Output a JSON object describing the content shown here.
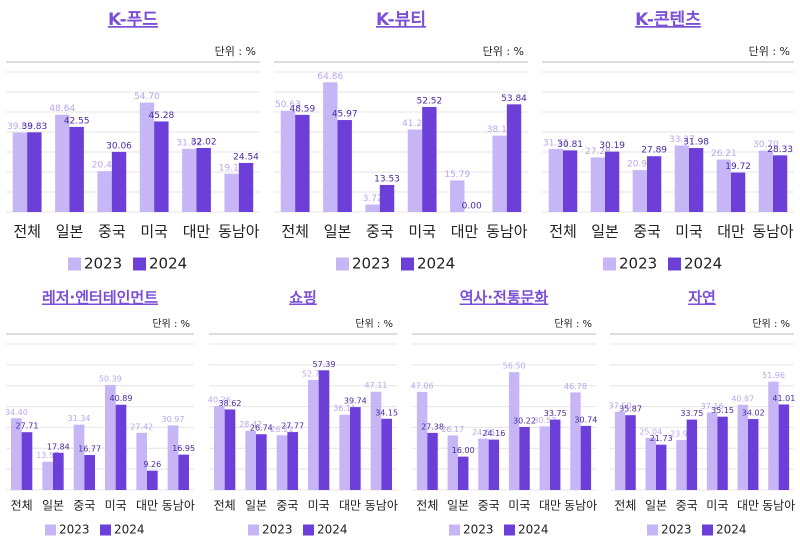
{
  "chart_data": [
    {
      "type": "bar",
      "title": "K-푸드",
      "unit": "단위 : %",
      "categories": [
        "전체",
        "일본",
        "중국",
        "미국",
        "대만",
        "동남아"
      ],
      "series": [
        {
          "name": "2023",
          "color": "#c6b6f6",
          "values": [
            39.68,
            48.64,
            20.42,
            54.7,
            31.62,
            19.12
          ],
          "value_labels": [
            "39.68",
            "48.64",
            "20.42",
            "54.70",
            "31.62",
            "19.12"
          ]
        },
        {
          "name": "2024",
          "color": "#6c3fd8",
          "values": [
            39.83,
            42.55,
            30.06,
            45.28,
            32.02,
            24.54
          ],
          "value_labels": [
            "39.83",
            "42.55",
            "30.06",
            "45.28",
            "32.02",
            "24.54"
          ]
        }
      ],
      "ylim": [
        0,
        70
      ],
      "yticks": [
        0,
        10,
        20,
        30,
        40,
        50,
        60,
        70
      ],
      "grid": true
    },
    {
      "type": "bar",
      "title": "K-뷰티",
      "unit": "단위 : %",
      "categories": [
        "전체",
        "일본",
        "중국",
        "미국",
        "대만",
        "동남아"
      ],
      "series": [
        {
          "name": "2023",
          "color": "#c6b6f6",
          "values": [
            50.63,
            64.86,
            3.72,
            41.24,
            15.79,
            38.19
          ],
          "value_labels": [
            "50.63",
            "64.86",
            "3.72",
            "41.24",
            "15.79",
            "38.19"
          ]
        },
        {
          "name": "2024",
          "color": "#6c3fd8",
          "values": [
            48.59,
            45.97,
            13.53,
            52.52,
            0.0,
            53.84
          ],
          "value_labels": [
            "48.59",
            "45.97",
            "13.53",
            "52.52",
            "0.00",
            "53.84"
          ]
        }
      ],
      "ylim": [
        0,
        70
      ],
      "yticks": [
        0,
        10,
        20,
        30,
        40,
        50,
        60,
        70
      ],
      "grid": true
    },
    {
      "type": "bar",
      "title": "K-콘텐츠",
      "unit": "단위 : %",
      "categories": [
        "전체",
        "일본",
        "중국",
        "미국",
        "대만",
        "동남아"
      ],
      "series": [
        {
          "name": "2023",
          "color": "#c6b6f6",
          "values": [
            31.51,
            27.28,
            20.95,
            33.27,
            26.21,
            30.7
          ],
          "value_labels": [
            "31.51",
            "27.28",
            "20.95",
            "33.27",
            "26.21",
            "30.70"
          ]
        },
        {
          "name": "2024",
          "color": "#6c3fd8",
          "values": [
            30.81,
            30.19,
            27.89,
            31.98,
            19.72,
            28.33
          ],
          "value_labels": [
            "30.81",
            "30.19",
            "27.89",
            "31.98",
            "19.72",
            "28.33"
          ]
        }
      ],
      "ylim": [
        0,
        70
      ],
      "yticks": [
        0,
        10,
        20,
        30,
        40,
        50,
        60,
        70
      ],
      "grid": true
    },
    {
      "type": "bar",
      "title": "레저·엔터테인먼트",
      "unit": "단위 : %",
      "categories": [
        "전체",
        "일본",
        "중국",
        "미국",
        "대만",
        "동남아"
      ],
      "series": [
        {
          "name": "2023",
          "color": "#c6b6f6",
          "values": [
            34.4,
            13.57,
            31.34,
            50.39,
            27.42,
            30.97
          ],
          "value_labels": [
            "34.40",
            "13.57",
            "31.34",
            "50.39",
            "27.42",
            "30.97"
          ]
        },
        {
          "name": "2024",
          "color": "#6c3fd8",
          "values": [
            27.71,
            17.84,
            16.77,
            40.89,
            9.26,
            16.95
          ],
          "value_labels": [
            "27.71",
            "17.84",
            "16.77",
            "40.89",
            "9.26",
            "16.95"
          ]
        }
      ],
      "ylim": [
        0,
        70
      ],
      "yticks": [
        0,
        10,
        20,
        30,
        40,
        50,
        60,
        70
      ],
      "grid": true
    },
    {
      "type": "bar",
      "title": "쇼핑",
      "unit": "단위 : %",
      "categories": [
        "전체",
        "일본",
        "중국",
        "미국",
        "대만",
        "동남아"
      ],
      "series": [
        {
          "name": "2023",
          "color": "#c6b6f6",
          "values": [
            40.26,
            28.42,
            26.21,
            52.78,
            36.11,
            47.11
          ],
          "value_labels": [
            "40.26",
            "28.42",
            "26.21",
            "52.78",
            "36.11",
            "47.11"
          ]
        },
        {
          "name": "2024",
          "color": "#6c3fd8",
          "values": [
            38.62,
            26.74,
            27.77,
            57.39,
            39.74,
            34.15
          ],
          "value_labels": [
            "38.62",
            "26.74",
            "27.77",
            "57.39",
            "39.74",
            "34.15"
          ]
        }
      ],
      "ylim": [
        0,
        70
      ],
      "yticks": [
        0,
        10,
        20,
        30,
        40,
        50,
        60,
        70
      ],
      "grid": true
    },
    {
      "type": "bar",
      "title": "역사·전통문화",
      "unit": "단위 : %",
      "categories": [
        "전체",
        "일본",
        "중국",
        "미국",
        "대만",
        "동남아"
      ],
      "series": [
        {
          "name": "2023",
          "color": "#c6b6f6",
          "values": [
            47.06,
            26.17,
            24.63,
            56.5,
            30.53,
            46.78
          ],
          "value_labels": [
            "47.06",
            "26.17",
            "24.63",
            "56.50",
            "30.53",
            "46.78"
          ]
        },
        {
          "name": "2024",
          "color": "#6c3fd8",
          "values": [
            27.38,
            16.0,
            24.16,
            30.22,
            33.75,
            30.74
          ],
          "value_labels": [
            "27.38",
            "16.00",
            "24.16",
            "30.22",
            "33.75",
            "30.74"
          ]
        }
      ],
      "ylim": [
        0,
        70
      ],
      "yticks": [
        0,
        10,
        20,
        30,
        40,
        50,
        60,
        70
      ],
      "grid": true
    },
    {
      "type": "bar",
      "title": "자연",
      "unit": "단위 : %",
      "categories": [
        "전체",
        "일본",
        "중국",
        "미국",
        "대만",
        "동남아"
      ],
      "series": [
        {
          "name": "2023",
          "color": "#c6b6f6",
          "values": [
            37.5,
            25.04,
            23.97,
            37.16,
            40.87,
            51.96
          ],
          "value_labels": [
            "37.50",
            "25.04",
            "23.97",
            "37.16",
            "40.87",
            "51.96"
          ]
        },
        {
          "name": "2024",
          "color": "#6c3fd8",
          "values": [
            35.87,
            21.73,
            33.75,
            35.15,
            34.02,
            41.01
          ],
          "value_labels": [
            "35.87",
            "21.73",
            "33.75",
            "35.15",
            "34.02",
            "41.01"
          ]
        }
      ],
      "ylim": [
        0,
        70
      ],
      "yticks": [
        0,
        10,
        20,
        30,
        40,
        50,
        60,
        70
      ],
      "grid": true
    }
  ]
}
